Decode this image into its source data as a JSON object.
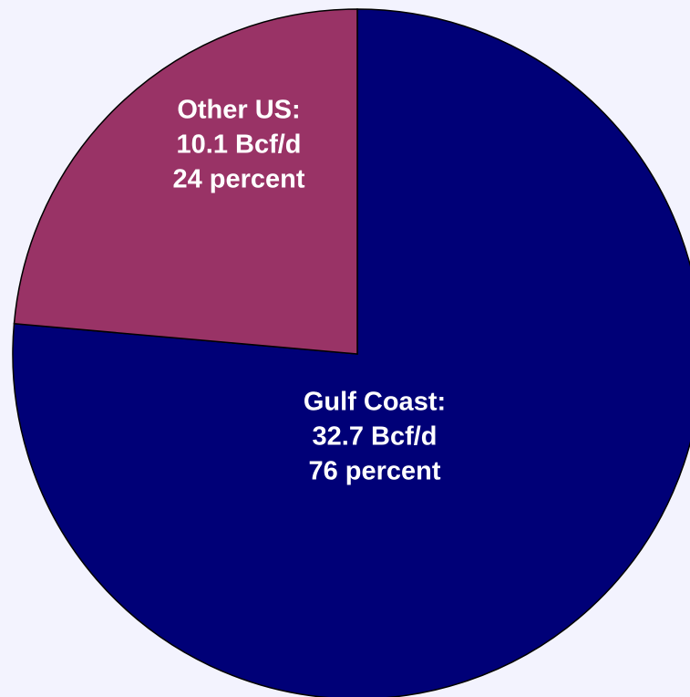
{
  "chart_data": {
    "type": "pie",
    "categories": [
      "Gulf Coast",
      "Other US"
    ],
    "values": [
      32.7,
      10.1
    ],
    "percentages": [
      76,
      24
    ],
    "unit": "Bcf/d",
    "colors": [
      "#000077",
      "#993366"
    ],
    "labels": [
      [
        "Gulf Coast:",
        "32.7 Bcf/d",
        " 76 percent"
      ],
      [
        "Other US:",
        "10.1 Bcf/d",
        "24 percent"
      ]
    ],
    "start": "12 o'clock",
    "direction": "clockwise",
    "legend": "none",
    "title": ""
  }
}
